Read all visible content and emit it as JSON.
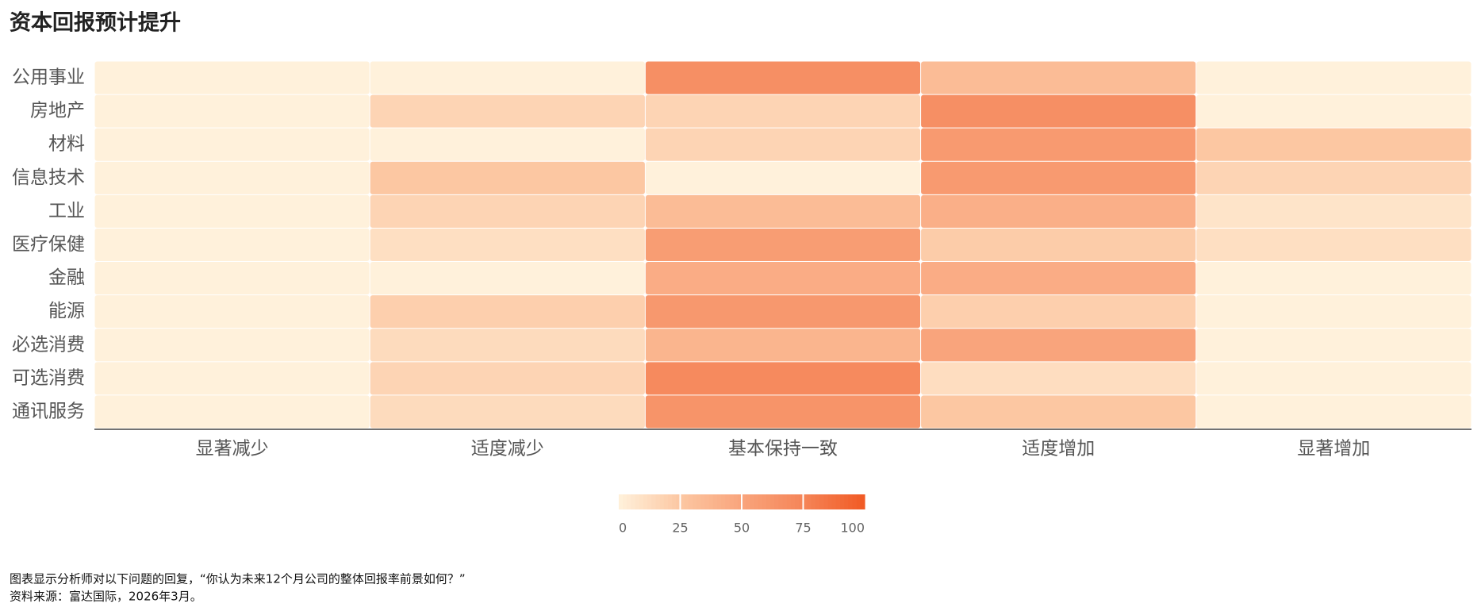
{
  "chart_data": {
    "type": "heatmap",
    "title": "资本回报预计提升",
    "x_categories": [
      "显著减少",
      "适度减少",
      "基本保持一致",
      "适度增加",
      "显著增加"
    ],
    "y_categories": [
      "公用事业",
      "房地产",
      "材料",
      "信息技术",
      "工业",
      "医疗保健",
      "金融",
      "能源",
      "必选消费",
      "可选消费",
      "通讯服务"
    ],
    "values": [
      [
        0,
        0,
        67,
        33,
        0
      ],
      [
        0,
        17,
        17,
        67,
        0
      ],
      [
        0,
        0,
        17,
        58,
        25
      ],
      [
        0,
        25,
        0,
        58,
        17
      ],
      [
        0,
        17,
        33,
        42,
        8
      ],
      [
        0,
        11,
        56,
        22,
        11
      ],
      [
        0,
        0,
        44,
        44,
        0
      ],
      [
        0,
        20,
        60,
        20,
        0
      ],
      [
        0,
        13,
        38,
        50,
        0
      ],
      [
        0,
        17,
        71,
        12,
        0
      ],
      [
        0,
        13,
        63,
        25,
        0
      ]
    ],
    "colorscale": [
      "#fff1db",
      "#fcc7a2",
      "#f9a47c",
      "#f58558",
      "#f15a24"
    ],
    "zlim": [
      0,
      100
    ],
    "colorbar_ticks": [
      0,
      25,
      50,
      75,
      100
    ],
    "notes": [
      "图表显示分析师对以下问题的回复，“你认为未来12个月公司的整体回报率前景如何？”",
      "资料来源：富达国际，2026年3月。"
    ]
  }
}
